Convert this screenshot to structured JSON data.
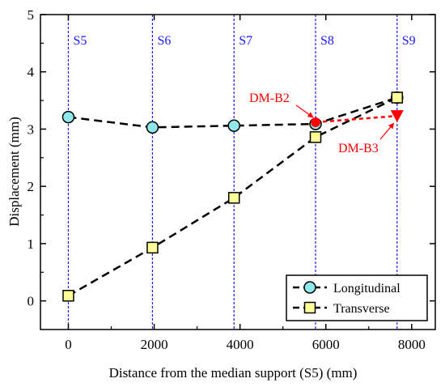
{
  "colors": {
    "support_line": "#1a1aff",
    "series_line": "#000000",
    "longitudinal_marker": "#8fe8ea",
    "transverse_marker": "#ffff99",
    "annotation": "#ff0000"
  },
  "chart_data": {
    "type": "line",
    "title": "",
    "xlabel": "Distance from the median support (S5) (mm)",
    "ylabel": "Displacement (mm)",
    "xlim": [
      -650,
      8550
    ],
    "ylim": [
      -0.5,
      5
    ],
    "xticks": [
      0,
      2000,
      4000,
      6000,
      8000
    ],
    "yticks": [
      0,
      1,
      2,
      3,
      4,
      5
    ],
    "xtick_labels": [
      "0",
      "2000",
      "4000",
      "6000",
      "8000"
    ],
    "ytick_labels": [
      "0",
      "1",
      "2",
      "3",
      "4",
      "5"
    ],
    "grid": false,
    "legend_position": "bottom-right",
    "supports": [
      {
        "label": "S5",
        "x": 0
      },
      {
        "label": "S6",
        "x": 1960
      },
      {
        "label": "S7",
        "x": 3860
      },
      {
        "label": "S8",
        "x": 5760
      },
      {
        "label": "S9",
        "x": 7660
      }
    ],
    "series": [
      {
        "name": "Longitudinal",
        "marker": "circle",
        "x": [
          0,
          1960,
          3860,
          5760,
          7660
        ],
        "y": [
          3.21,
          3.03,
          3.06,
          3.09,
          3.55
        ]
      },
      {
        "name": "Transverse",
        "marker": "square",
        "x": [
          0,
          1960,
          3860,
          5760,
          7660
        ],
        "y": [
          0.09,
          0.93,
          1.8,
          2.86,
          3.55
        ]
      }
    ],
    "annotations": [
      {
        "label": "DM-B2",
        "x": 5760,
        "y": 3.12
      },
      {
        "label": "DM-B3",
        "x": 7660,
        "y": 3.23
      }
    ]
  }
}
